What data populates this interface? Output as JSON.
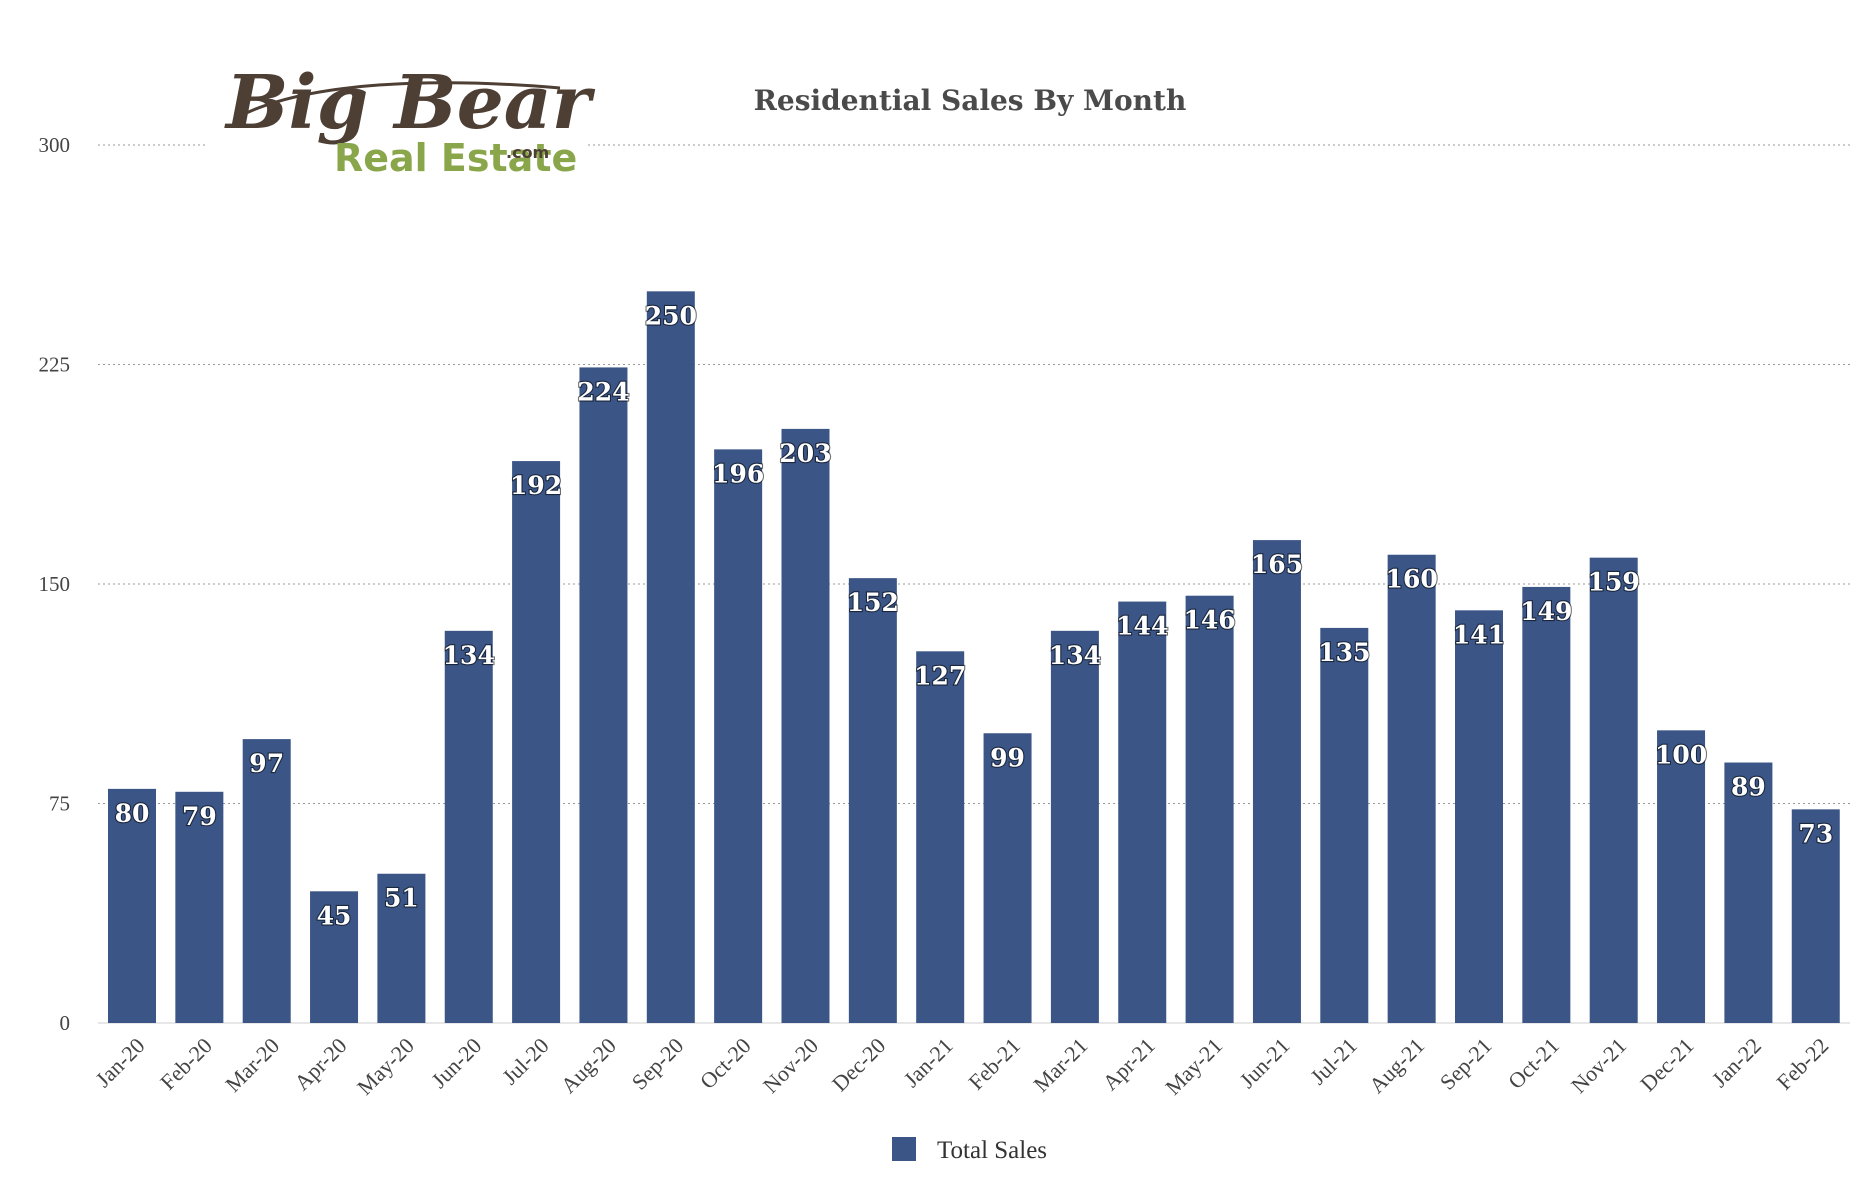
{
  "logo": {
    "line1": "Big Bear",
    "line2": "Real Estate",
    "suffix": ".com",
    "colors": {
      "script": "#4e3f35",
      "sub": "#8aa64b"
    }
  },
  "chart_data": {
    "type": "bar",
    "title": "Residential Sales By Month",
    "xlabel": "",
    "ylabel": "",
    "ylim": [
      0,
      300
    ],
    "yticks": [
      0,
      75,
      150,
      225,
      300
    ],
    "grid": true,
    "legend": "bottom-center",
    "categories": [
      "Jan-20",
      "Feb-20",
      "Mar-20",
      "Apr-20",
      "May-20",
      "Jun-20",
      "Jul-20",
      "Aug-20",
      "Sep-20",
      "Oct-20",
      "Nov-20",
      "Dec-20",
      "Jan-21",
      "Feb-21",
      "Mar-21",
      "Apr-21",
      "May-21",
      "Jun-21",
      "Jul-21",
      "Aug-21",
      "Sep-21",
      "Oct-21",
      "Nov-21",
      "Dec-21",
      "Jan-22",
      "Feb-22"
    ],
    "series": [
      {
        "name": "Total Sales",
        "color": "#3a5586",
        "values": [
          80,
          79,
          97,
          45,
          51,
          134,
          192,
          224,
          250,
          196,
          203,
          152,
          127,
          99,
          134,
          144,
          146,
          165,
          135,
          160,
          141,
          149,
          159,
          100,
          89,
          73
        ]
      }
    ]
  }
}
